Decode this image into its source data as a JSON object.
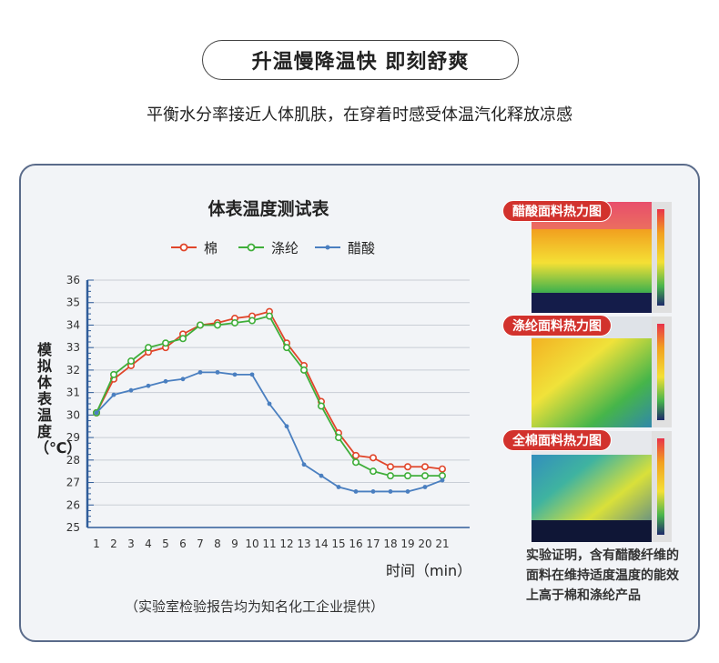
{
  "headline": "升温慢降温快 即刻舒爽",
  "subtitle": "平衡水分率接近人体肌肤，在穿着时感受体温汽化释放凉感",
  "heatmaps": [
    {
      "label": "醋酸面料热力图"
    },
    {
      "label": "涤纶面料热力图"
    },
    {
      "label": "全棉面料热力图"
    }
  ],
  "conclusion": "实验证明，含有醋酸纤维的面料在维持适度温度的能效上高于棉和涤纶产品",
  "footnote": "（实验室检验报告均为知名化工企业提供）",
  "chart_data": {
    "type": "line",
    "title": "体表温度测试表",
    "xlabel": "时间（min）",
    "ylabel": "模拟体表温度（℃）",
    "ylim": [
      25,
      36
    ],
    "x": [
      1,
      2,
      3,
      4,
      5,
      6,
      7,
      8,
      9,
      10,
      11,
      12,
      13,
      14,
      15,
      16,
      17,
      18,
      19,
      20,
      21
    ],
    "y_ticks": [
      "25",
      "26",
      "27",
      "28",
      "29",
      "30",
      "31",
      "32",
      "33",
      "34",
      "35",
      "36"
    ],
    "x_ticks": [
      "1",
      "2",
      "3",
      "4",
      "5",
      "6",
      "7",
      "8",
      "9",
      "10",
      "11",
      "12",
      "13",
      "14",
      "15",
      "16",
      "17",
      "18",
      "19",
      "20",
      "21"
    ],
    "grid": true,
    "legend_position": "top",
    "series": [
      {
        "name": "棉",
        "color": "#e0452a",
        "marker": "open-circle",
        "values": [
          30.1,
          31.6,
          32.2,
          32.8,
          33.0,
          33.6,
          34.0,
          34.1,
          34.3,
          34.4,
          34.6,
          33.2,
          32.2,
          30.6,
          29.2,
          28.2,
          28.1,
          27.7,
          27.7,
          27.7,
          27.6
        ]
      },
      {
        "name": "涤纶",
        "color": "#3fae3a",
        "marker": "open-circle",
        "values": [
          30.1,
          31.8,
          32.4,
          33.0,
          33.2,
          33.4,
          34.0,
          34.0,
          34.1,
          34.2,
          34.4,
          33.0,
          32.0,
          30.4,
          29.0,
          27.9,
          27.5,
          27.3,
          27.3,
          27.3,
          27.3
        ]
      },
      {
        "name": "醋酸",
        "color": "#4a7fc0",
        "marker": "dot",
        "values": [
          30.1,
          30.9,
          31.1,
          31.3,
          31.5,
          31.6,
          31.9,
          31.9,
          31.8,
          31.8,
          30.5,
          29.5,
          27.8,
          27.3,
          26.8,
          26.6,
          26.6,
          26.6,
          26.6,
          26.8,
          27.1
        ]
      }
    ]
  }
}
